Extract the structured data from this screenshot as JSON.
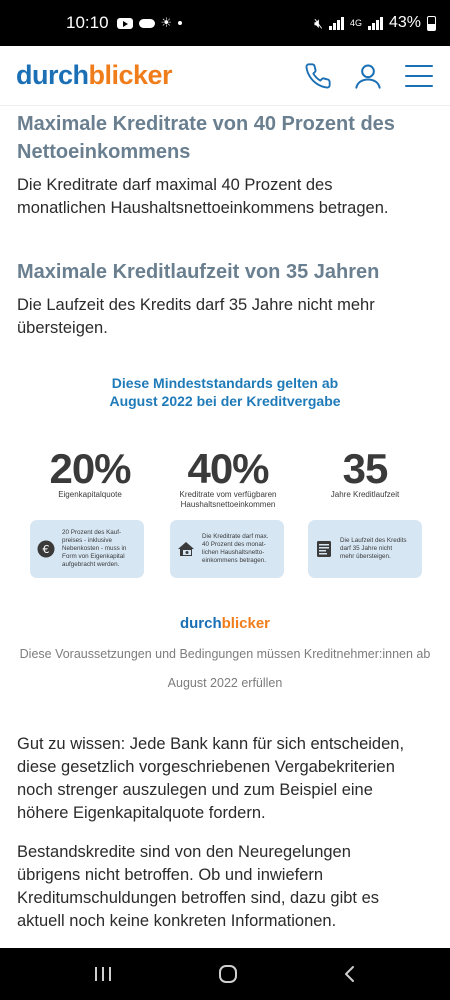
{
  "status_bar": {
    "time": "10:10",
    "network": "4G",
    "battery": "43%"
  },
  "header": {
    "logo_part1": "durch",
    "logo_part2": "blicker",
    "colors": {
      "blue": "#1a6fb5",
      "orange": "#f07d1b"
    }
  },
  "sections": [
    {
      "heading_line1": "Maximale Kreditrate von 40 Prozent des",
      "heading_line2": "Nettoeinkommens",
      "body_line1": "Die Kreditrate darf maximal 40 Prozent des",
      "body_line2": "monatlichen Haushaltsnettoeinkommens betragen."
    },
    {
      "heading_line1": "Maximale Kreditlaufzeit von 35 Jahren",
      "body_line1": "Die Laufzeit des Kredits darf 35 Jahre nicht mehr",
      "body_line2": "übersteigen."
    }
  ],
  "infographic": {
    "title_line1": "Diese Mindeststandards gelten ab",
    "title_line2": "August 2022 bei der Kreditvergabe",
    "stats": [
      {
        "value": "20%",
        "label_line1": "Eigenkapitalquote",
        "label_line2": "",
        "icon": "euro-coin-icon",
        "card_lines": [
          "20 Prozent des Kauf-",
          "preises - inklusive",
          "Nebenkosten - muss in",
          "Form von Eigenkapital",
          "aufgebracht werden."
        ]
      },
      {
        "value": "40%",
        "label_line1": "Kreditrate vom verfügbaren",
        "label_line2": "Haushaltsnettoeinkommen",
        "icon": "house-money-icon",
        "card_lines": [
          "Die Kreditrate darf max.",
          "40 Prozent des monat-",
          "lichen Haushaltsnetto-",
          "einkommens betragen."
        ]
      },
      {
        "value": "35",
        "label_line1": "Jahre Kreditlaufzeit",
        "label_line2": "",
        "icon": "calendar-document-icon",
        "card_lines": [
          "Die Laufzeit des Kredits",
          "darf 35 Jahre nicht",
          "mehr übersteigen."
        ]
      }
    ],
    "logo_part1": "durch",
    "logo_part2": "blicker",
    "caption_line1": "Diese Voraussetzungen und Bedingungen müssen Kreditnehmer:innen ab",
    "caption_line2": "August 2022 erfüllen"
  },
  "paragraphs": [
    {
      "lines": [
        "Gut zu wissen: Jede Bank kann für sich entscheiden,",
        "diese gesetzlich vorgeschriebenen Vergabekriterien",
        "noch strenger auszulegen und zum Beispiel eine",
        "höhere Eigenkapitalquote fordern."
      ]
    },
    {
      "lines": [
        "Bestandskredite sind von den Neuregelungen",
        "übrigens nicht betroffen. Ob und inwiefern",
        "Kreditumschuldungen betroffen sind, dazu gibt es",
        "aktuell noch keine konkreten Informationen."
      ]
    }
  ]
}
